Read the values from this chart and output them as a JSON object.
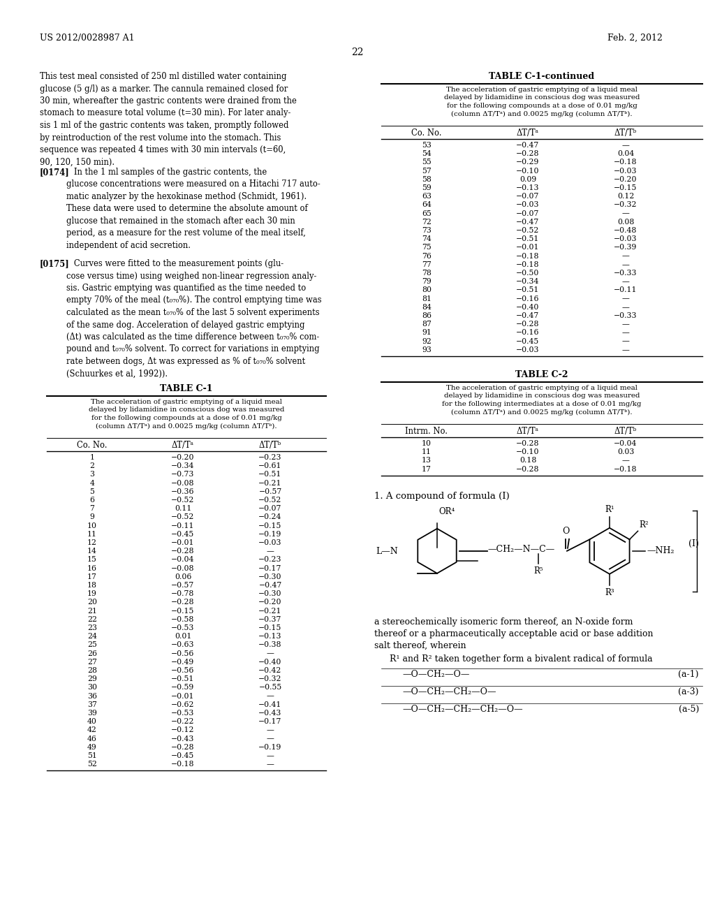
{
  "page_header_left": "US 2012/0028987 A1",
  "page_header_right": "Feb. 2, 2012",
  "page_number": "22",
  "table_c1_title": "TABLE C-1",
  "table_c1_continued_title": "TABLE C-1-continued",
  "table_c1_caption": "The acceleration of gastric emptying of a liquid meal\ndelayed by lidamidine in conscious dog was measured\nfor the following compounds at a dose of 0.01 mg/kg\n(column ΔT/Tᵃ) and 0.0025 mg/kg (column ΔT/Tᵇ).",
  "table_c1_headers": [
    "Co. No.",
    "ΔT/Tᵃ",
    "ΔT/Tᵇ"
  ],
  "table_c1_data": [
    [
      "1",
      "−0.20",
      "−0.23"
    ],
    [
      "2",
      "−0.34",
      "−0.61"
    ],
    [
      "3",
      "−0.73",
      "−0.51"
    ],
    [
      "4",
      "−0.08",
      "−0.21"
    ],
    [
      "5",
      "−0.36",
      "−0.57"
    ],
    [
      "6",
      "−0.52",
      "−0.52"
    ],
    [
      "7",
      "0.11",
      "−0.07"
    ],
    [
      "9",
      "−0.52",
      "−0.24"
    ],
    [
      "10",
      "−0.11",
      "−0.15"
    ],
    [
      "11",
      "−0.45",
      "−0.19"
    ],
    [
      "12",
      "−0.01",
      "−0.03"
    ],
    [
      "14",
      "−0.28",
      "—"
    ],
    [
      "15",
      "−0.04",
      "−0.23"
    ],
    [
      "16",
      "−0.08",
      "−0.17"
    ],
    [
      "17",
      "0.06",
      "−0.30"
    ],
    [
      "18",
      "−0.57",
      "−0.47"
    ],
    [
      "19",
      "−0.78",
      "−0.30"
    ],
    [
      "20",
      "−0.28",
      "−0.20"
    ],
    [
      "21",
      "−0.15",
      "−0.21"
    ],
    [
      "22",
      "−0.58",
      "−0.37"
    ],
    [
      "23",
      "−0.53",
      "−0.15"
    ],
    [
      "24",
      "0.01",
      "−0.13"
    ],
    [
      "25",
      "−0.63",
      "−0.38"
    ],
    [
      "26",
      "−0.56",
      "—"
    ],
    [
      "27",
      "−0.49",
      "−0.40"
    ],
    [
      "28",
      "−0.56",
      "−0.42"
    ],
    [
      "29",
      "−0.51",
      "−0.32"
    ],
    [
      "30",
      "−0.59",
      "−0.55"
    ],
    [
      "36",
      "−0.01",
      "—"
    ],
    [
      "37",
      "−0.62",
      "−0.41"
    ],
    [
      "39",
      "−0.53",
      "−0.43"
    ],
    [
      "40",
      "−0.22",
      "−0.17"
    ],
    [
      "42",
      "−0.12",
      "—"
    ],
    [
      "46",
      "−0.43",
      "—"
    ],
    [
      "49",
      "−0.28",
      "−0.19"
    ],
    [
      "51",
      "−0.45",
      "—"
    ],
    [
      "52",
      "−0.18",
      "—"
    ]
  ],
  "table_c1_continued_data": [
    [
      "53",
      "−0.47",
      "—"
    ],
    [
      "54",
      "−0.28",
      "0.04"
    ],
    [
      "55",
      "−0.29",
      "−0.18"
    ],
    [
      "57",
      "−0.10",
      "−0.03"
    ],
    [
      "58",
      "0.09",
      "−0.20"
    ],
    [
      "59",
      "−0.13",
      "−0.15"
    ],
    [
      "63",
      "−0.07",
      "0.12"
    ],
    [
      "64",
      "−0.03",
      "−0.32"
    ],
    [
      "65",
      "−0.07",
      "—"
    ],
    [
      "72",
      "−0.47",
      "0.08"
    ],
    [
      "73",
      "−0.52",
      "−0.48"
    ],
    [
      "74",
      "−0.51",
      "−0.03"
    ],
    [
      "75",
      "−0.01",
      "−0.39"
    ],
    [
      "76",
      "−0.18",
      "—"
    ],
    [
      "77",
      "−0.18",
      "—"
    ],
    [
      "78",
      "−0.50",
      "−0.33"
    ],
    [
      "79",
      "−0.34",
      "—"
    ],
    [
      "80",
      "−0.51",
      "−0.11"
    ],
    [
      "81",
      "−0.16",
      "—"
    ],
    [
      "84",
      "−0.40",
      "—"
    ],
    [
      "86",
      "−0.47",
      "−0.33"
    ],
    [
      "87",
      "−0.28",
      "—"
    ],
    [
      "91",
      "−0.16",
      "—"
    ],
    [
      "92",
      "−0.45",
      "—"
    ],
    [
      "93",
      "−0.03",
      "—"
    ]
  ],
  "table_c2_title": "TABLE C-2",
  "table_c2_caption": "The acceleration of gastric emptying of a liquid meal\ndelayed by lidamidine in conscious dog was measured\nfor the following intermediates at a dose of 0.01 mg/kg\n(column ΔT/Tᵃ) and 0.0025 mg/kg (column ΔT/Tᵇ).",
  "table_c2_headers": [
    "Intrm. No.",
    "ΔT/Tᵃ",
    "ΔT/Tᵇ"
  ],
  "table_c2_data": [
    [
      "10",
      "−0.28",
      "−0.04"
    ],
    [
      "11",
      "−0.10",
      "0.03"
    ],
    [
      "13",
      "0.18",
      "—"
    ],
    [
      "17",
      "−0.28",
      "−0.18"
    ]
  ]
}
